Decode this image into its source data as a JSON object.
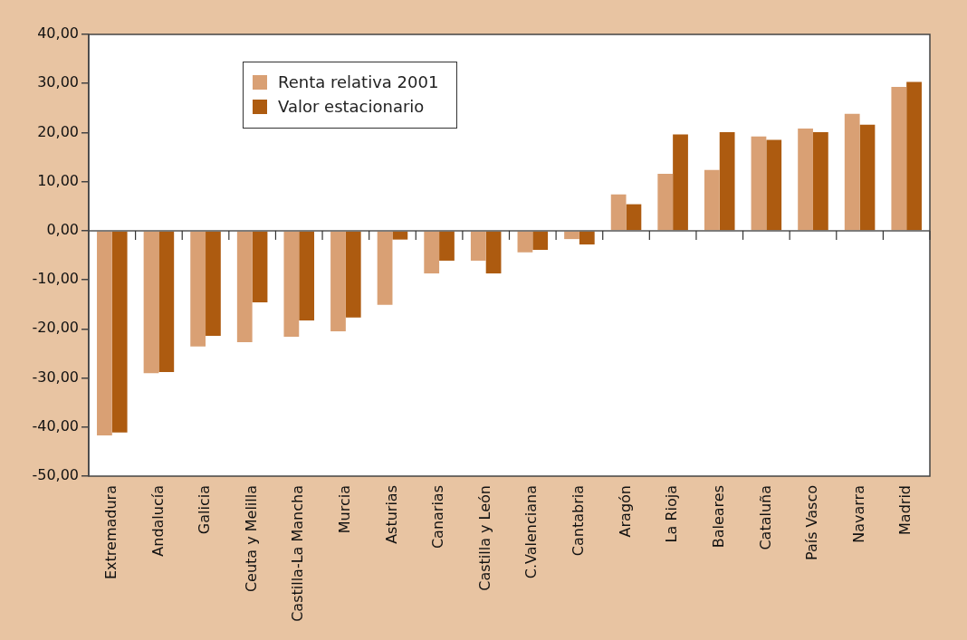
{
  "chart_data": {
    "type": "bar",
    "categories": [
      "Extremadura",
      "Andalucía",
      "Galicia",
      "Ceuta y Melilla",
      "Castilla-La Mancha",
      "Murcia",
      "Asturias",
      "Canarias",
      "Castilla y León",
      "C.Valenciana",
      "Cantabria",
      "Aragón",
      "La Rioja",
      "Baleares",
      "Cataluña",
      "País Vasco",
      "Navarra",
      "Madrid"
    ],
    "series": [
      {
        "name": "Renta relativa 2001",
        "color": "#d9a074",
        "values": [
          -41.7,
          -29.0,
          -23.6,
          -22.7,
          -21.6,
          -20.5,
          -15.1,
          -8.7,
          -6.1,
          -4.4,
          -1.7,
          7.4,
          11.6,
          12.4,
          19.2,
          20.8,
          23.8,
          29.3
        ]
      },
      {
        "name": "Valor estacionario",
        "color": "#ad5b10",
        "values": [
          -41.1,
          -28.8,
          -21.4,
          -14.6,
          -18.3,
          -17.7,
          -1.8,
          -6.1,
          -8.7,
          -3.9,
          -2.8,
          5.4,
          19.6,
          20.1,
          18.5,
          20.1,
          21.6,
          30.3
        ]
      }
    ],
    "ylim": [
      -50,
      40
    ],
    "yticks": [
      {
        "value": -50,
        "label": "-50,00"
      },
      {
        "value": -40,
        "label": "-40,00"
      },
      {
        "value": -30,
        "label": "-30,00"
      },
      {
        "value": -20,
        "label": "-20,00"
      },
      {
        "value": -10,
        "label": "-10,00"
      },
      {
        "value": 0,
        "label": "0,00"
      },
      {
        "value": 10,
        "label": "10,00"
      },
      {
        "value": 20,
        "label": "20,00"
      },
      {
        "value": 30,
        "label": "30,00"
      },
      {
        "value": 40,
        "label": "40,00"
      }
    ],
    "legend": "top left"
  }
}
